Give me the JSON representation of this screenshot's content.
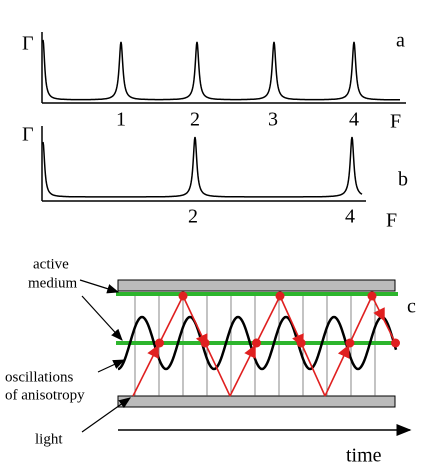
{
  "panel_a": {
    "y_label": "Γ",
    "x_label": "F",
    "panel_label": "a",
    "tick_labels": [
      "1",
      "2",
      "3",
      "4"
    ]
  },
  "panel_b": {
    "y_label": "Γ",
    "x_label": "F",
    "panel_label": "b",
    "tick_labels": [
      "2",
      "4"
    ]
  },
  "panel_c": {
    "panel_label": "c",
    "labels": {
      "active": "active",
      "medium": "medium",
      "oscillations": "oscillations",
      "anisotropy": "of anisotropy",
      "light": "light",
      "time": "time"
    }
  }
}
